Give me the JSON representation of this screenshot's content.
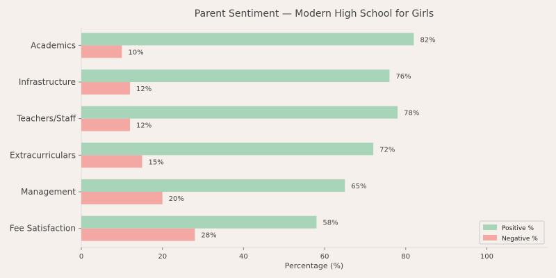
{
  "colors": {
    "background": "#f5f0ec",
    "positive": "#a8d5ba",
    "negative": "#f4a8a3",
    "text": "#444444",
    "axis": "#dddddd"
  },
  "chart_data": {
    "type": "bar",
    "orientation": "horizontal",
    "title": "Parent Sentiment — Modern High School for Girls",
    "xlabel": "Percentage (%)",
    "ylabel": "",
    "xlim": [
      0,
      115
    ],
    "xticks": [
      0,
      20,
      40,
      60,
      80,
      100
    ],
    "categories": [
      "Academics",
      "Infrastructure",
      "Teachers/Staff",
      "Extracurriculars",
      "Management",
      "Fee Satisfaction"
    ],
    "series": [
      {
        "name": "Positive %",
        "values": [
          82,
          76,
          78,
          72,
          65,
          58
        ]
      },
      {
        "name": "Negative %",
        "values": [
          10,
          12,
          12,
          15,
          20,
          28
        ]
      }
    ],
    "value_suffix": "%",
    "grid": false,
    "legend_position": "bottom-right"
  }
}
